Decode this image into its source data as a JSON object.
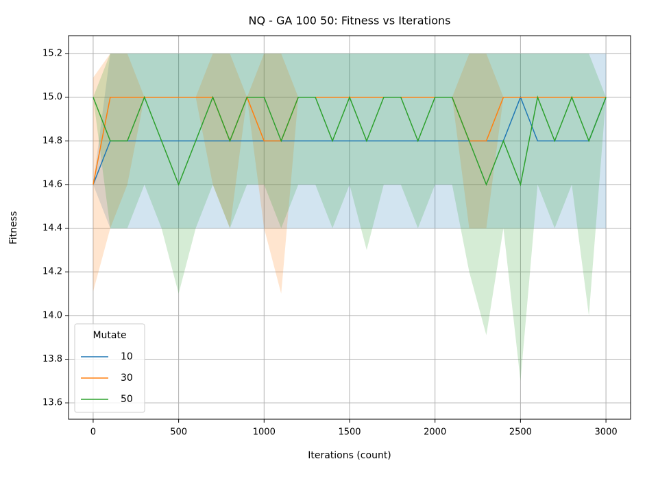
{
  "chart_data": {
    "type": "line",
    "title": "NQ - GA 100 50: Fitness vs Iterations",
    "x_label": "Iterations (count)",
    "y_label": "Fitness",
    "x": [
      0,
      100,
      200,
      300,
      400,
      500,
      600,
      700,
      800,
      900,
      1000,
      1100,
      1200,
      1300,
      1400,
      1500,
      1600,
      1700,
      1800,
      1900,
      2000,
      2100,
      2200,
      2300,
      2400,
      2500,
      2600,
      2700,
      2800,
      2900,
      3000
    ],
    "series": [
      {
        "name": "10",
        "color": "#1f77b4",
        "values": [
          14.6,
          14.8,
          14.8,
          14.8,
          14.8,
          14.8,
          14.8,
          14.8,
          14.8,
          14.8,
          14.8,
          14.8,
          14.8,
          14.8,
          14.8,
          14.8,
          14.8,
          14.8,
          14.8,
          14.8,
          14.8,
          14.8,
          14.8,
          14.8,
          14.8,
          15.0,
          14.8,
          14.8,
          14.8,
          14.8,
          15.0
        ],
        "lower": [
          14.6,
          14.4,
          14.4,
          14.4,
          14.4,
          14.4,
          14.4,
          14.4,
          14.4,
          14.4,
          14.4,
          14.4,
          14.4,
          14.4,
          14.4,
          14.4,
          14.4,
          14.4,
          14.4,
          14.4,
          14.4,
          14.4,
          14.4,
          14.4,
          14.4,
          14.4,
          14.4,
          14.4,
          14.4,
          14.4,
          14.4
        ],
        "upper": [
          14.6,
          15.2,
          15.2,
          15.2,
          15.2,
          15.2,
          15.2,
          15.2,
          15.2,
          15.2,
          15.2,
          15.2,
          15.2,
          15.2,
          15.2,
          15.2,
          15.2,
          15.2,
          15.2,
          15.2,
          15.2,
          15.2,
          15.2,
          15.2,
          15.2,
          15.2,
          15.2,
          15.2,
          15.2,
          15.2,
          15.2
        ]
      },
      {
        "name": "30",
        "color": "#ff7f0e",
        "values": [
          14.6,
          15.0,
          15.0,
          15.0,
          15.0,
          15.0,
          15.0,
          15.0,
          14.8,
          15.0,
          14.8,
          14.8,
          15.0,
          15.0,
          15.0,
          15.0,
          15.0,
          15.0,
          15.0,
          15.0,
          15.0,
          15.0,
          14.8,
          14.8,
          15.0,
          15.0,
          15.0,
          15.0,
          15.0,
          15.0,
          15.0
        ],
        "lower": [
          14.11,
          14.4,
          14.6,
          15.0,
          15.0,
          15.0,
          15.0,
          14.6,
          14.4,
          15.0,
          14.4,
          14.1,
          15.0,
          15.0,
          15.0,
          15.0,
          15.0,
          15.0,
          15.0,
          15.0,
          15.0,
          15.0,
          14.4,
          14.4,
          15.0,
          15.0,
          15.0,
          15.0,
          15.0,
          15.0,
          15.0
        ],
        "upper": [
          15.09,
          15.2,
          15.2,
          15.0,
          15.0,
          15.0,
          15.0,
          15.2,
          15.2,
          15.0,
          15.2,
          15.2,
          15.0,
          15.0,
          15.0,
          15.0,
          15.0,
          15.0,
          15.0,
          15.0,
          15.0,
          15.0,
          15.2,
          15.2,
          15.0,
          15.0,
          15.0,
          15.0,
          15.0,
          15.0,
          15.0
        ]
      },
      {
        "name": "50",
        "color": "#2ca02c",
        "values": [
          15.0,
          14.8,
          14.8,
          15.0,
          14.8,
          14.6,
          14.8,
          15.0,
          14.8,
          15.0,
          15.0,
          14.8,
          15.0,
          15.0,
          14.8,
          15.0,
          14.8,
          15.0,
          15.0,
          14.8,
          15.0,
          15.0,
          14.8,
          14.6,
          14.8,
          14.6,
          15.0,
          14.8,
          15.0,
          14.8,
          15.0
        ],
        "lower": [
          15.0,
          14.4,
          14.4,
          14.6,
          14.4,
          14.1,
          14.4,
          14.6,
          14.4,
          14.6,
          14.6,
          14.4,
          14.6,
          14.6,
          14.4,
          14.6,
          14.3,
          14.6,
          14.6,
          14.4,
          14.6,
          14.6,
          14.2,
          13.91,
          14.4,
          13.7,
          14.6,
          14.4,
          14.6,
          14.0,
          15.0
        ],
        "upper": [
          15.0,
          15.2,
          15.2,
          15.2,
          15.2,
          15.2,
          15.2,
          15.2,
          15.2,
          15.2,
          15.2,
          15.2,
          15.2,
          15.2,
          15.2,
          15.2,
          15.2,
          15.2,
          15.2,
          15.2,
          15.2,
          15.2,
          15.2,
          15.2,
          15.2,
          15.2,
          15.2,
          15.2,
          15.2,
          15.2,
          15.0
        ]
      }
    ],
    "legend_title": "Mutate",
    "legend": "lower left",
    "grid": true,
    "xlim": [
      -144,
      3144
    ],
    "xticks": [
      0,
      500,
      1000,
      1500,
      2000,
      2500,
      3000
    ],
    "ylim": [
      13.525,
      15.282
    ],
    "yticks": [
      13.6,
      13.8,
      {
        "value": 14,
        "label": "14.0"
      },
      14.2,
      14.4,
      14.6,
      14.8,
      {
        "value": 15,
        "label": "15.0"
      },
      15.2
    ]
  }
}
